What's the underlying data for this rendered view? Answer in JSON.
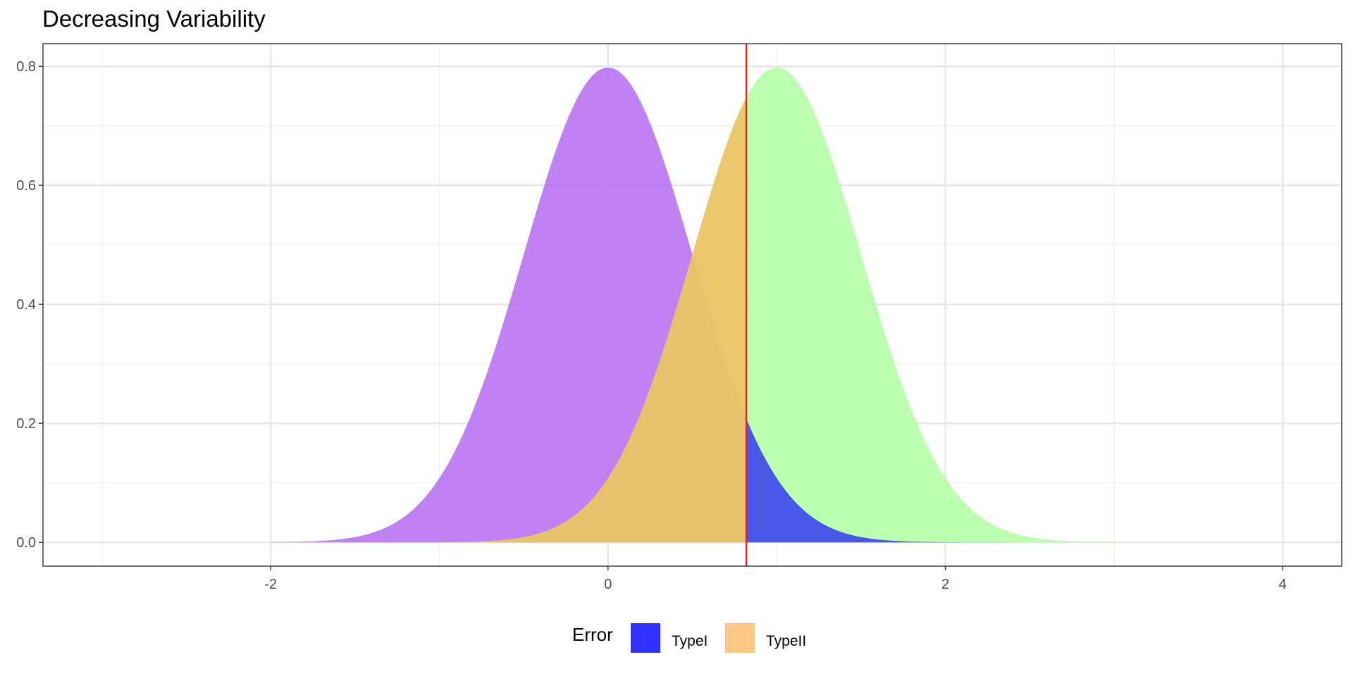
{
  "chart_data": {
    "type": "area",
    "title": "Decreasing Variability",
    "xlabel": "",
    "ylabel": "",
    "xlim": [
      -3.35,
      4.35
    ],
    "ylim": [
      -0.04,
      0.838
    ],
    "x_ticks": [
      -2,
      0,
      2,
      4
    ],
    "x_tick_labels": [
      "-2",
      "0",
      "2",
      "4"
    ],
    "y_ticks": [
      0.0,
      0.2,
      0.4,
      0.6,
      0.8
    ],
    "y_tick_labels": [
      "0.0",
      "0.2",
      "0.4",
      "0.6",
      "0.8"
    ],
    "x_minor_ticks": [
      -3,
      -1,
      1,
      3
    ],
    "y_minor_ticks": [
      0.1,
      0.3,
      0.5,
      0.7
    ],
    "grid": true,
    "critical_value": 0.82,
    "critical_line_color": "#E8211A",
    "series": [
      {
        "mean": 0,
        "sd": 0.5,
        "peak": 0.798,
        "color": "#B266F0",
        "role": "null distribution"
      },
      {
        "mean": 1,
        "sd": 0.5,
        "peak": 0.798,
        "color": "#B0FFA2",
        "role": "alternative distribution"
      }
    ],
    "shaded_regions": [
      {
        "name": "TypeI",
        "distribution": "null",
        "from": 0.82,
        "to": 3.0,
        "color": "#1A1AFF"
      },
      {
        "name": "TypeII",
        "distribution": "alternative",
        "from": -1.0,
        "to": 0.82,
        "color": "#FFB04E"
      }
    ],
    "legend": {
      "title": "Error",
      "position": "bottom",
      "entries": [
        {
          "label": "TypeI",
          "color": "#1A1AFF"
        },
        {
          "label": "TypeII",
          "color": "#FFB04E"
        }
      ]
    }
  }
}
